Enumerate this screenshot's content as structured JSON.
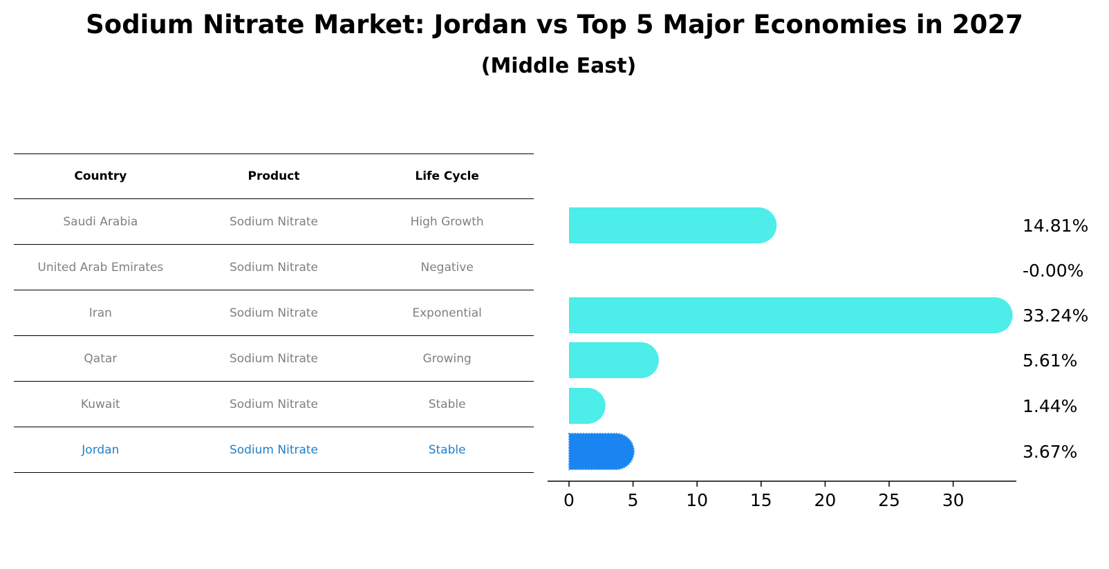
{
  "title": "Sodium Nitrate Market: Jordan vs Top 5 Major Economies in 2027",
  "subtitle": "(Middle East)",
  "table": {
    "headers": [
      "Country",
      "Product",
      "Life Cycle"
    ],
    "rows": [
      {
        "country": "Saudi Arabia",
        "product": "Sodium Nitrate",
        "life_cycle": "High Growth"
      },
      {
        "country": "United Arab Emirates",
        "product": "Sodium Nitrate",
        "life_cycle": "Negative"
      },
      {
        "country": "Iran",
        "product": "Sodium Nitrate",
        "life_cycle": "Exponential"
      },
      {
        "country": "Qatar",
        "product": "Sodium Nitrate",
        "life_cycle": "Growing"
      },
      {
        "country": "Kuwait",
        "product": "Sodium Nitrate",
        "life_cycle": "Stable"
      },
      {
        "country": "Jordan",
        "product": "Sodium Nitrate",
        "life_cycle": "Stable"
      }
    ]
  },
  "chart_data": {
    "type": "bar",
    "orientation": "horizontal",
    "categories": [
      "Saudi Arabia",
      "United Arab Emirates",
      "Iran",
      "Qatar",
      "Kuwait",
      "Jordan"
    ],
    "values": [
      14.81,
      -0.0,
      33.24,
      5.61,
      1.44,
      3.67
    ],
    "labels": [
      "14.81%",
      "-0.00%",
      "33.24%",
      "5.61%",
      "1.44%",
      "3.67%"
    ],
    "highlight": "Jordan",
    "xticks": [
      0,
      5,
      10,
      15,
      20,
      25,
      30
    ],
    "xlim": [
      -1.7,
      34.9
    ],
    "colors": {
      "default": "#4dede9",
      "highlight": "#1a85f0"
    }
  }
}
